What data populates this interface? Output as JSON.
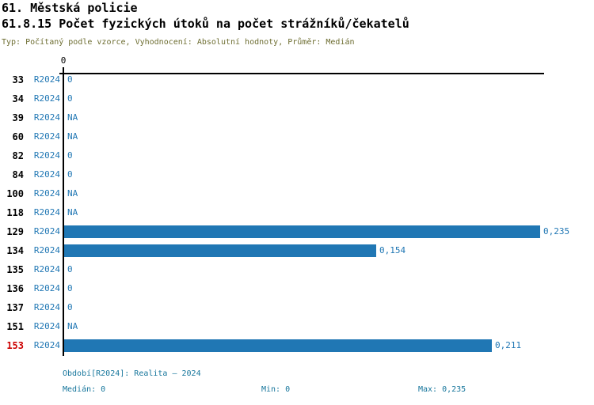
{
  "header": {
    "title": "61. Městská policie",
    "subtitle": "61.8.15 Počet fyzických útoků na počet strážníků/čekatelů",
    "meta": "Typ: Počítaný podle vzorce, Vyhodnocení: Absolutní hodnoty, Průměr: Medián"
  },
  "chart_data": {
    "type": "bar",
    "orientation": "horizontal",
    "title": "61.8.15 Počet fyzických útoků na počet strážníků/čekatelů",
    "period_label": "R2024",
    "axis": {
      "tick_label": "0",
      "max": 0.237,
      "xlim": [
        0,
        0.237
      ],
      "grid": false
    },
    "categories": [
      "33",
      "34",
      "39",
      "60",
      "82",
      "84",
      "100",
      "118",
      "129",
      "134",
      "135",
      "136",
      "137",
      "151",
      "153"
    ],
    "values": [
      0,
      0,
      null,
      null,
      0,
      0,
      null,
      null,
      0.235,
      0.154,
      0,
      0,
      0,
      null,
      0.211
    ],
    "value_labels": [
      "0",
      "0",
      "NA",
      "NA",
      "0",
      "0",
      "NA",
      "NA",
      "0,235",
      "0,154",
      "0",
      "0",
      "0",
      "NA",
      "0,211"
    ],
    "highlighted_category": "153",
    "bar_color": "#2077B4",
    "summary": {
      "median": 0,
      "min": 0,
      "max": 0.235
    }
  },
  "footer": {
    "period_line": "Období[R2024]: Realita – 2024",
    "median_label": "Medián: 0",
    "min_label": "Min: 0",
    "max_label": "Max: 0,235"
  },
  "colors": {
    "title": "#000000",
    "meta": "#6E6E32",
    "bar": "#2077B4",
    "value_text": "#2077B4",
    "highlight": "#CC0000",
    "footer_text": "#17769C",
    "axis": "#000000"
  }
}
